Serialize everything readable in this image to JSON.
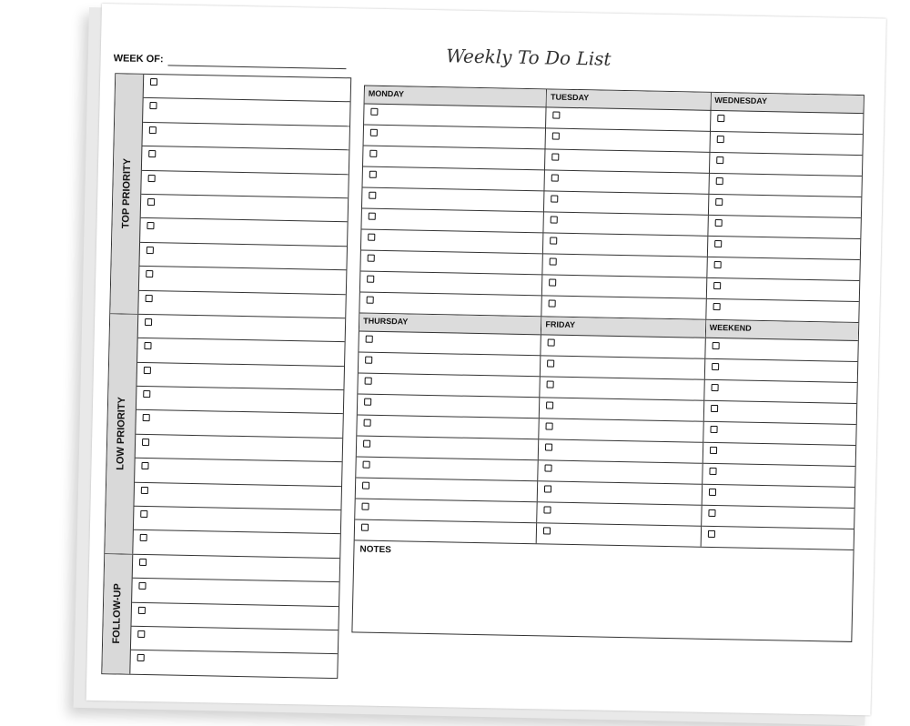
{
  "title": "Weekly To Do List",
  "week_of_label": "WEEK OF:",
  "left_sections": [
    {
      "label": "TOP PRIORITY",
      "rows": 10
    },
    {
      "label": "LOW PRIORITY",
      "rows": 10
    },
    {
      "label": "FOLLOW-UP",
      "rows": 5
    }
  ],
  "day_bands": [
    [
      {
        "label": "MONDAY",
        "rows": 10
      },
      {
        "label": "TUESDAY",
        "rows": 10
      },
      {
        "label": "WEDNESDAY",
        "rows": 10
      }
    ],
    [
      {
        "label": "THURSDAY",
        "rows": 10
      },
      {
        "label": "FRIDAY",
        "rows": 10
      },
      {
        "label": "WEEKEND",
        "rows": 10
      }
    ]
  ],
  "notes_label": "NOTES",
  "colors": {
    "header_fill": "#dcdcdc",
    "line": "#333333"
  }
}
